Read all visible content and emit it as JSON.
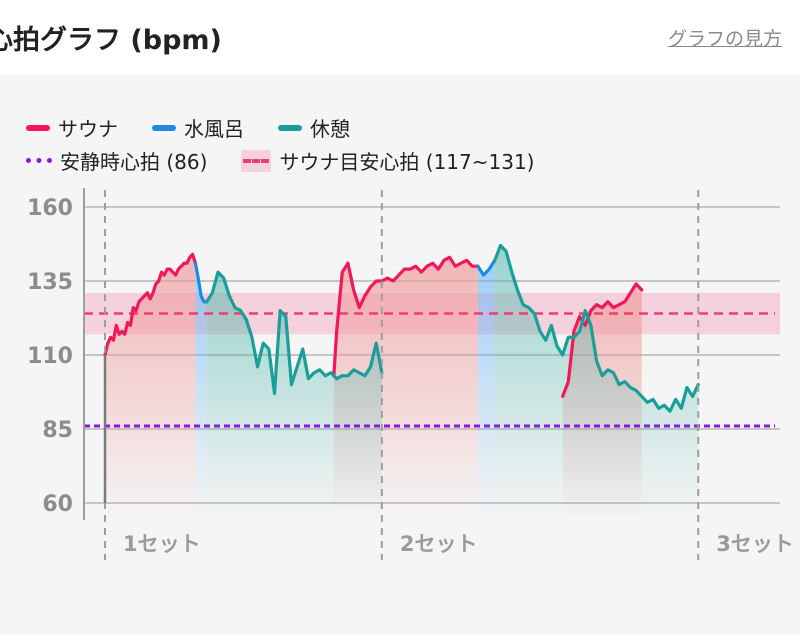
{
  "header": {
    "title": "心拍グラフ (bpm)",
    "help_link": "グラフの見方"
  },
  "legend": {
    "sauna": "サウナ",
    "cold_bath": "水風呂",
    "rest": "休憩",
    "resting_hr": "安静時心拍 (86)",
    "sauna_target": "サウナ目安心拍 (117~131)"
  },
  "colors": {
    "sauna": "#f0175a",
    "cold_bath": "#1e88e5",
    "rest": "#1a9e9a",
    "resting_hr": "#8a18e8",
    "target_band": "#f48fb1"
  },
  "chart_data": {
    "type": "line",
    "ylim": [
      60,
      160
    ],
    "yticks": [
      60,
      85,
      110,
      135,
      160
    ],
    "grid": true,
    "legend_position": "top-left",
    "resting_hr": 86,
    "target_range": [
      117,
      131
    ],
    "target_line": 124,
    "set_labels": [
      "1セット",
      "2セット",
      "3セット"
    ],
    "series": [
      {
        "name": "サウナ",
        "color": "#f0175a",
        "segments": [
          [
            [
              0,
              110
            ],
            [
              0.5,
              114
            ],
            [
              1,
              116
            ],
            [
              1.5,
              115
            ],
            [
              2,
              120
            ],
            [
              2.5,
              117
            ],
            [
              3,
              118
            ],
            [
              3.5,
              117
            ],
            [
              4,
              121
            ],
            [
              4.5,
              120
            ],
            [
              5,
              126
            ],
            [
              5.5,
              125
            ],
            [
              6,
              128
            ],
            [
              6.5,
              129
            ],
            [
              7,
              130
            ],
            [
              7.5,
              131
            ],
            [
              8,
              129
            ],
            [
              8.5,
              131
            ],
            [
              9,
              134
            ],
            [
              9.5,
              135
            ],
            [
              10,
              138
            ],
            [
              10.5,
              137
            ],
            [
              11,
              139
            ],
            [
              11.5,
              139
            ],
            [
              12,
              138
            ],
            [
              12.5,
              137
            ],
            [
              13,
              139
            ],
            [
              13.5,
              140
            ],
            [
              14,
              141
            ],
            [
              14.5,
              141
            ],
            [
              15,
              143
            ],
            [
              15.5,
              144
            ],
            [
              16,
              141
            ]
          ],
          [
            [
              40.5,
              103
            ],
            [
              41,
              118
            ],
            [
              42,
              138
            ],
            [
              43,
              141
            ],
            [
              44,
              132
            ],
            [
              45,
              126
            ],
            [
              46,
              130
            ],
            [
              47,
              133
            ],
            [
              48,
              135
            ],
            [
              49,
              135
            ],
            [
              50,
              136
            ],
            [
              51,
              135
            ],
            [
              52,
              137
            ],
            [
              53,
              139
            ],
            [
              54,
              139
            ],
            [
              55,
              140
            ],
            [
              56,
              138
            ],
            [
              57,
              140
            ],
            [
              58,
              141
            ],
            [
              59,
              139
            ],
            [
              60,
              142
            ],
            [
              61,
              143
            ],
            [
              62,
              140
            ],
            [
              63,
              141
            ],
            [
              64,
              142
            ],
            [
              65,
              140
            ],
            [
              66,
              140
            ]
          ],
          [
            [
              81,
              96
            ],
            [
              82,
              101
            ],
            [
              83,
              118
            ],
            [
              84,
              123
            ],
            [
              85,
              120
            ],
            [
              86,
              125
            ],
            [
              87,
              127
            ],
            [
              88,
              126
            ],
            [
              89,
              128
            ],
            [
              90,
              126
            ],
            [
              91,
              127
            ],
            [
              92,
              128
            ],
            [
              93,
              131
            ],
            [
              94,
              134
            ],
            [
              95,
              132
            ]
          ]
        ]
      },
      {
        "name": "水風呂",
        "color": "#1e88e5",
        "segments": [
          [
            [
              16,
              141
            ],
            [
              16.5,
              136
            ],
            [
              17,
              130
            ],
            [
              17.5,
              128
            ],
            [
              18,
              128
            ]
          ],
          [
            [
              66,
              140
            ],
            [
              67,
              137
            ],
            [
              68,
              139
            ],
            [
              69,
              142
            ]
          ]
        ]
      },
      {
        "name": "休憩",
        "color": "#1a9e9a",
        "segments": [
          [
            [
              18,
              128
            ],
            [
              19,
              131
            ],
            [
              20,
              138
            ],
            [
              21,
              136
            ],
            [
              22,
              130
            ],
            [
              23,
              126
            ],
            [
              24,
              125
            ],
            [
              25,
              122
            ],
            [
              26,
              116
            ],
            [
              27,
              106
            ],
            [
              28,
              114
            ],
            [
              29,
              112
            ],
            [
              30,
              97
            ],
            [
              31,
              125
            ],
            [
              32,
              123
            ],
            [
              33,
              100
            ],
            [
              34,
              106
            ],
            [
              35,
              112
            ],
            [
              36,
              102
            ],
            [
              37,
              104
            ],
            [
              38,
              105
            ],
            [
              39,
              103
            ],
            [
              40,
              104
            ],
            [
              41,
              102
            ],
            [
              42,
              103
            ],
            [
              43,
              103
            ],
            [
              44,
              105
            ],
            [
              45,
              104
            ],
            [
              46,
              103
            ],
            [
              47,
              106
            ],
            [
              48,
              114
            ],
            [
              49,
              104
            ]
          ],
          [
            [
              69,
              142
            ],
            [
              70,
              147
            ],
            [
              71,
              145
            ],
            [
              72,
              138
            ],
            [
              73,
              132
            ],
            [
              74,
              127
            ],
            [
              75,
              126
            ],
            [
              76,
              124
            ],
            [
              77,
              118
            ],
            [
              78,
              115
            ],
            [
              79,
              120
            ],
            [
              80,
              113
            ],
            [
              81,
              110
            ],
            [
              82,
              116
            ],
            [
              83,
              116
            ],
            [
              84,
              118
            ],
            [
              85,
              125
            ],
            [
              86,
              120
            ],
            [
              87,
              108
            ],
            [
              88,
              103
            ],
            [
              89,
              105
            ],
            [
              90,
              104
            ],
            [
              91,
              100
            ],
            [
              92,
              101
            ],
            [
              93,
              99
            ],
            [
              94,
              98
            ],
            [
              95,
              96
            ],
            [
              96,
              94
            ],
            [
              97,
              95
            ],
            [
              98,
              92
            ],
            [
              99,
              93
            ],
            [
              100,
              91
            ],
            [
              101,
              95
            ],
            [
              102,
              92
            ],
            [
              103,
              99
            ],
            [
              104,
              96
            ],
            [
              105,
              100
            ]
          ]
        ]
      }
    ]
  }
}
